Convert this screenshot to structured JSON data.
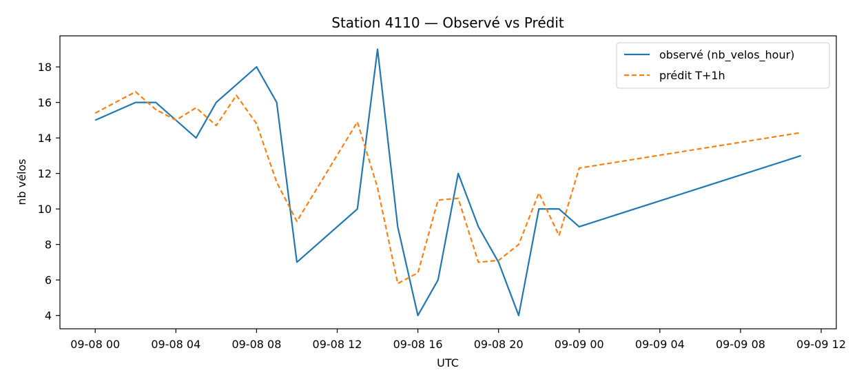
{
  "chart_data": {
    "type": "line",
    "title": "Station 4110 — Observé vs Prédit",
    "xlabel": "UTC",
    "ylabel": "nb vélos",
    "x_unit": "hour (UTC), starting 2025-09-08 00:00",
    "x_ticks": [
      {
        "label": "09-08 00",
        "x": 0
      },
      {
        "label": "09-08 04",
        "x": 4
      },
      {
        "label": "09-08 08",
        "x": 8
      },
      {
        "label": "09-08 12",
        "x": 12
      },
      {
        "label": "09-08 16",
        "x": 16
      },
      {
        "label": "09-08 20",
        "x": 20
      },
      {
        "label": "09-09 00",
        "x": 24
      },
      {
        "label": "09-09 04",
        "x": 28
      },
      {
        "label": "09-09 08",
        "x": 32
      },
      {
        "label": "09-09 12",
        "x": 36
      }
    ],
    "y_ticks": [
      4,
      6,
      8,
      10,
      12,
      14,
      16,
      18
    ],
    "xlim": [
      -1.75,
      36.75
    ],
    "ylim": [
      3.25,
      19.75
    ],
    "legend_position": "top-right",
    "grid": false,
    "series": [
      {
        "name": "observé (nb_velos_hour)",
        "color": "#1f77b4",
        "style": "solid",
        "x": [
          0,
          2,
          3,
          4,
          5,
          6,
          8,
          9,
          10,
          13,
          14,
          15,
          16,
          17,
          18,
          19,
          20,
          21,
          22,
          23,
          24,
          35
        ],
        "values": [
          15,
          16,
          16,
          15,
          14,
          16,
          18,
          16,
          7,
          10,
          19,
          9,
          4,
          6,
          12,
          9,
          7,
          4,
          10,
          10,
          9,
          13
        ]
      },
      {
        "name": "prédit T+1h",
        "color": "#ff7f0e",
        "style": "dashed",
        "x": [
          0,
          2,
          3,
          4,
          5,
          6,
          7,
          8,
          9,
          10,
          13,
          14,
          15,
          16,
          17,
          18,
          19,
          20,
          21,
          22,
          23,
          24,
          35
        ],
        "values": [
          15.4,
          16.6,
          15.6,
          15.0,
          15.7,
          14.7,
          16.4,
          14.8,
          11.5,
          9.3,
          14.9,
          11.2,
          5.8,
          6.4,
          10.5,
          10.6,
          7.0,
          7.1,
          8.0,
          10.9,
          8.5,
          12.3,
          14.3
        ]
      }
    ]
  }
}
